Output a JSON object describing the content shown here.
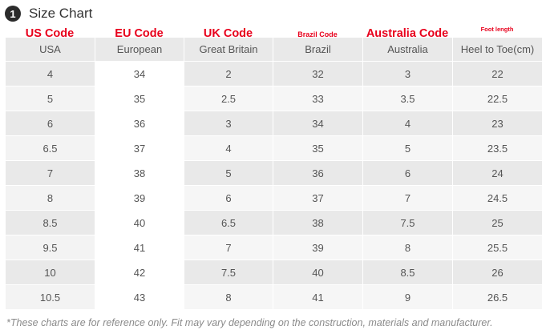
{
  "title": {
    "badge": "1",
    "text": "Size Chart"
  },
  "red_labels": {
    "us": "US Code",
    "eu": "EU Code",
    "uk": "UK Code",
    "brazil": "Brazil Code",
    "australia": "Australia Code",
    "foot": "Foot length"
  },
  "table": {
    "headers": [
      "USA",
      "European",
      "Great Britain",
      "Brazil",
      "Australia",
      "Heel to Toe(cm)"
    ],
    "rows": [
      [
        "4",
        "34",
        "2",
        "32",
        "3",
        "22"
      ],
      [
        "5",
        "35",
        "2.5",
        "33",
        "3.5",
        "22.5"
      ],
      [
        "6",
        "36",
        "3",
        "34",
        "4",
        "23"
      ],
      [
        "6.5",
        "37",
        "4",
        "35",
        "5",
        "23.5"
      ],
      [
        "7",
        "38",
        "5",
        "36",
        "6",
        "24"
      ],
      [
        "8",
        "39",
        "6",
        "37",
        "7",
        "24.5"
      ],
      [
        "8.5",
        "40",
        "6.5",
        "38",
        "7.5",
        "25"
      ],
      [
        "9.5",
        "41",
        "7",
        "39",
        "8",
        "25.5"
      ],
      [
        "10",
        "42",
        "7.5",
        "40",
        "8.5",
        "26"
      ],
      [
        "10.5",
        "43",
        "8",
        "41",
        "9",
        "26.5"
      ]
    ]
  },
  "footnote": "*These charts are for reference only. Fit may vary depending on the construction, materials and manufacturer.",
  "colors": {
    "accent_red": "#e8001c",
    "badge_bg": "#2b2b2b",
    "row_shade": "#e9e9e9"
  }
}
